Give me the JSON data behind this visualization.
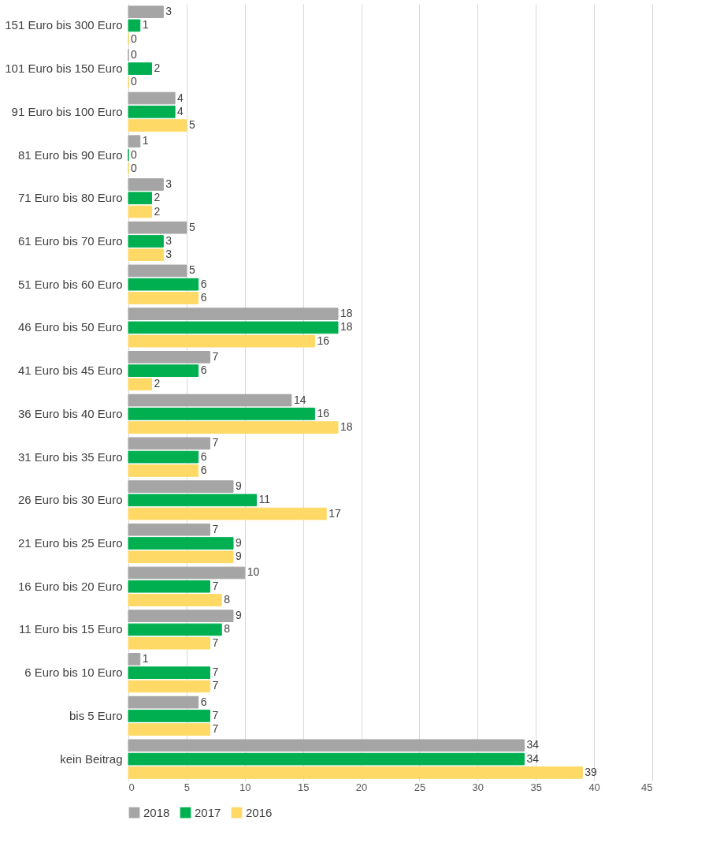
{
  "chart_data": {
    "type": "bar",
    "orientation": "horizontal",
    "categories": [
      "151 Euro bis 300 Euro",
      "101 Euro bis 150 Euro",
      "91 Euro bis 100 Euro",
      "81 Euro bis 90 Euro",
      "71 Euro bis 80 Euro",
      "61 Euro bis 70 Euro",
      "51 Euro bis 60 Euro",
      "46 Euro bis 50 Euro",
      "41 Euro bis 45 Euro",
      "36 Euro bis 40 Euro",
      "31 Euro bis 35 Euro",
      "26 Euro bis 30 Euro",
      "21 Euro bis 25 Euro",
      "16 Euro bis 20 Euro",
      "11 Euro bis 15 Euro",
      "6 Euro bis 10 Euro",
      "bis 5 Euro",
      "kein Beitrag"
    ],
    "series": [
      {
        "name": "2018",
        "color": "#a5a5a5",
        "values": [
          3,
          0,
          4,
          1,
          3,
          5,
          5,
          18,
          7,
          14,
          7,
          9,
          7,
          10,
          9,
          1,
          6,
          34
        ]
      },
      {
        "name": "2017",
        "color": "#00b050",
        "values": [
          1,
          2,
          4,
          0,
          2,
          3,
          6,
          18,
          6,
          16,
          6,
          11,
          9,
          7,
          8,
          7,
          7,
          34
        ]
      },
      {
        "name": "2016",
        "color": "#ffd966",
        "values": [
          0,
          0,
          5,
          0,
          2,
          3,
          6,
          16,
          2,
          18,
          6,
          17,
          9,
          8,
          7,
          7,
          7,
          39
        ]
      }
    ],
    "xlim": [
      0,
      45
    ],
    "xticks": [
      0,
      5,
      10,
      15,
      20,
      25,
      30,
      35,
      40,
      45
    ],
    "grid": "x",
    "legend": "bottom",
    "data_labels": true
  }
}
